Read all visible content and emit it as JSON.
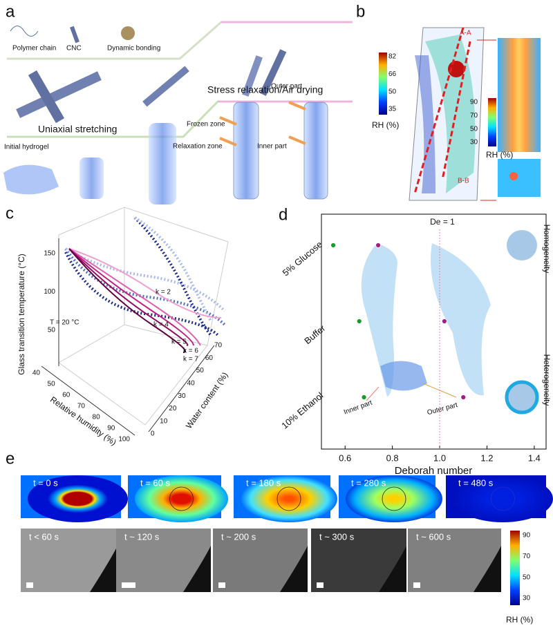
{
  "panels": {
    "a": {
      "label": "a",
      "texts": [
        "Polymer chain",
        "CNC",
        "Dynamic bonding",
        "Stress relaxation/Air drying",
        "Uniaxial stretching",
        "Initial hydrogel",
        "Frozen zone",
        "Relaxation zone",
        "Outer part",
        "Inner part"
      ]
    },
    "b": {
      "label": "b",
      "colorbar1": {
        "ticks": [
          82,
          66,
          50,
          35
        ],
        "label": "RH (%)"
      },
      "colorbar2": {
        "ticks": [
          90,
          70,
          50,
          30
        ],
        "label": "RH (%)"
      },
      "section_labels": [
        "A-A",
        "B-B"
      ]
    },
    "c": {
      "label": "c",
      "ylabel": "Glass transition temperature (°C)",
      "xlabel": "Relative humidity (%)",
      "zlabel": "Water content (%)",
      "yticks": [
        50,
        100,
        150
      ],
      "xticks": [
        40,
        50,
        60,
        70,
        80,
        90,
        100
      ],
      "zticks": [
        0,
        10,
        20,
        30,
        40,
        50,
        60,
        70
      ],
      "annotations": [
        "k = 2",
        "k = 4",
        "k = 5",
        "k = 6",
        "k = 7",
        "T = 20 °C"
      ]
    },
    "e": {
      "label": "e",
      "simulation_times": [
        "t = 0 s",
        "t = 60 s",
        "t = 180 s",
        "t = 280 s",
        "t = 480 s"
      ],
      "sem_times": [
        "t < 60 s",
        "t ~ 120 s",
        "t ~ 200 s",
        "t ~ 300 s",
        "t ~ 600 s"
      ],
      "colorbar": {
        "ticks": [
          90,
          70,
          50,
          30
        ],
        "label": "RH (%)"
      }
    }
  },
  "chart_data": {
    "type": "scatter",
    "label": "d",
    "xlabel": "Deborah number",
    "categories": [
      "5% Glucose",
      "Buffer",
      "10% Ethanol"
    ],
    "xlim": [
      0.5,
      1.45
    ],
    "xticks": [
      0.6,
      0.8,
      {
        "value": 1,
        "label": "1.0"
      },
      1.2,
      1.4
    ],
    "series": [
      {
        "name": "Inner part",
        "color": "#1a9a2a",
        "values": [
          0.55,
          0.66,
          0.68
        ]
      },
      {
        "name": "Outer part",
        "color": "#a0208a",
        "values": [
          0.74,
          1.02,
          1.1
        ]
      }
    ],
    "annotations": [
      "De = 1",
      "Homogeneity",
      "Heterogeneity"
    ]
  }
}
